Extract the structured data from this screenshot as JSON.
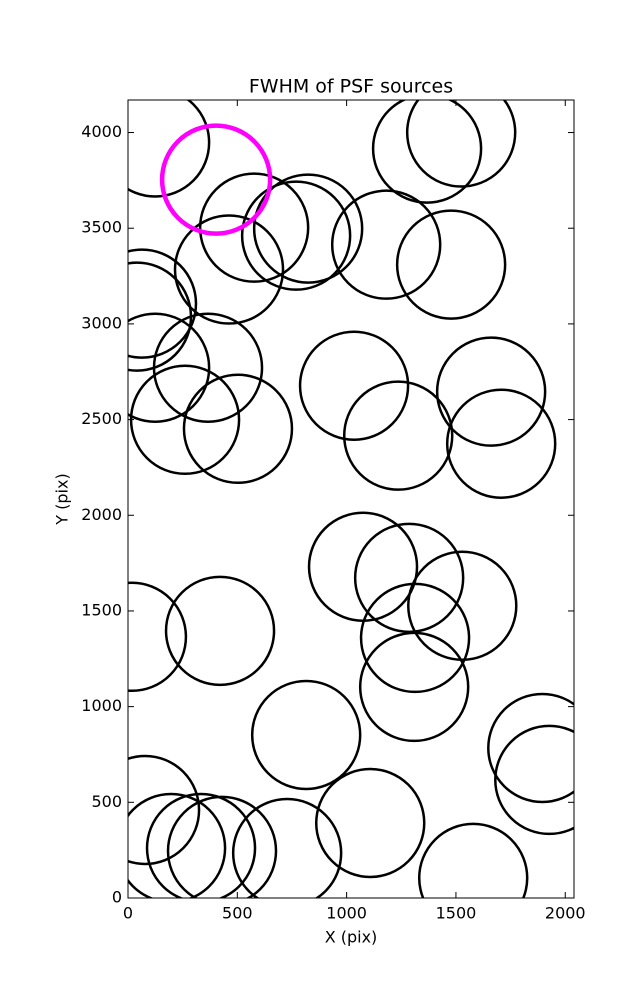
{
  "chart_data": {
    "type": "scatter",
    "title": "FWHM of PSF sources",
    "xlabel": "X (pix)",
    "ylabel": "Y (pix)",
    "xlim": [
      0,
      2040
    ],
    "ylim": [
      0,
      4170
    ],
    "xticks": [
      0,
      500,
      1000,
      1500,
      2000
    ],
    "yticks": [
      0,
      500,
      1000,
      1500,
      2000,
      2500,
      3000,
      3500,
      4000
    ],
    "grid": false,
    "series": [
      {
        "color": "#000000",
        "x": [
          124,
          1368,
          1524,
          577,
          824,
          769,
          462,
          1181,
          1478,
          64,
          41,
          366,
          124,
          261,
          503,
          1034,
          1236,
          1661,
          1707,
          1075,
          1286,
          1529,
          1313,
          1309,
          18,
          421,
          815,
          1895,
          1927,
          78,
          197,
          334,
          430,
          728,
          1108,
          1579
        ],
        "y": [
          3948,
          3916,
          4000,
          3503,
          3498,
          3461,
          3284,
          3414,
          3310,
          3106,
          3038,
          2771,
          2771,
          2499,
          2452,
          2677,
          2416,
          2646,
          2374,
          1731,
          1673,
          1527,
          1359,
          1103,
          1365,
          1396,
          852,
          784,
          617,
          460,
          261,
          261,
          246,
          235,
          392,
          105
        ]
      },
      {
        "color": "#ff00ff",
        "x": [
          403
        ],
        "y": [
          3754
        ]
      }
    ]
  }
}
